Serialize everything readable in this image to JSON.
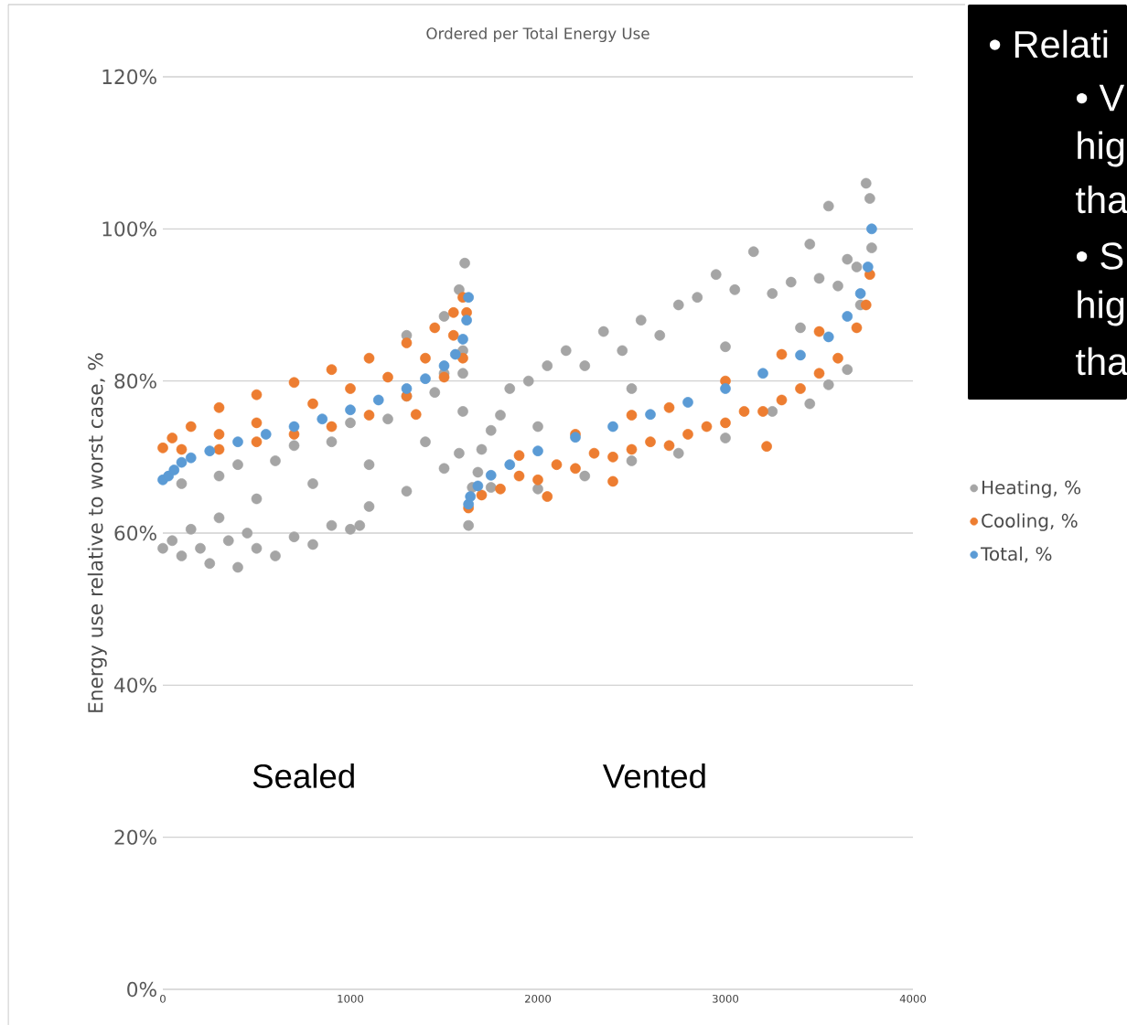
{
  "chart_data": {
    "type": "scatter",
    "title": "Ordered per Total Energy Use",
    "ylabel": "Energy use relative to worst case, %",
    "xlim": [
      0,
      4000
    ],
    "xticks": [
      0,
      1000,
      2000,
      3000,
      4000
    ],
    "ylim": [
      0,
      120
    ],
    "yticks": [
      {
        "value": 0,
        "label": "0%"
      },
      {
        "value": 20,
        "label": "20%"
      },
      {
        "value": 40,
        "label": "40%"
      },
      {
        "value": 60,
        "label": "60%"
      },
      {
        "value": 80,
        "label": "80%"
      },
      {
        "value": 100,
        "label": "100%"
      },
      {
        "value": 120,
        "label": "120%"
      }
    ],
    "grid": "y",
    "legend": "right",
    "marker": "circle",
    "series": [
      {
        "name": "Heating, %",
        "color": "#a5a5a5",
        "x": [
          1300,
          1500,
          1580,
          1610,
          100,
          400,
          700,
          1000,
          1300,
          1500,
          1600,
          300,
          600,
          900,
          1200,
          1450,
          1600,
          500,
          800,
          1100,
          1400,
          1600,
          1100,
          1300,
          1500,
          1580,
          0,
          50,
          100,
          150,
          200,
          250,
          300,
          350,
          400,
          450,
          500,
          600,
          700,
          800,
          900,
          1000,
          1050,
          1630,
          1650,
          1680,
          1700,
          1750,
          1800,
          1850,
          1950,
          2050,
          2150,
          2250,
          2350,
          2450,
          2550,
          2650,
          2750,
          2850,
          2950,
          3050,
          3150,
          3250,
          3350,
          3450,
          3500,
          3550,
          3600,
          3650,
          3700,
          3720,
          3750,
          3770,
          3780,
          1750,
          2000,
          2250,
          2500,
          2750,
          3000,
          3250,
          3450,
          3550,
          3650,
          2000,
          2500,
          3000,
          3400
        ],
        "values": [
          86,
          88.5,
          92,
          95.5,
          66.5,
          69,
          71.5,
          74.5,
          78,
          81,
          84,
          67.5,
          69.5,
          72,
          75,
          78.5,
          81,
          64.5,
          66.5,
          69,
          72,
          76,
          63.5,
          65.5,
          68.5,
          70.5,
          58,
          59,
          57,
          60.5,
          58,
          56,
          62,
          59,
          55.5,
          60,
          58,
          57,
          59.5,
          58.5,
          61,
          60.5,
          61,
          61,
          66,
          68,
          71,
          73.5,
          75.5,
          79,
          80,
          82,
          84,
          82,
          86.5,
          84,
          88,
          86,
          90,
          91,
          94,
          92,
          97,
          91.5,
          93,
          98,
          93.5,
          103,
          92.5,
          96,
          95,
          90,
          106,
          104,
          97.5,
          66,
          65.8,
          67.5,
          69.5,
          70.5,
          72.5,
          76,
          77,
          79.5,
          81.5,
          74,
          79,
          84.5,
          87
        ]
      },
      {
        "name": "Cooling, %",
        "color": "#ed7d31",
        "x": [
          0,
          50,
          150,
          300,
          500,
          700,
          900,
          1100,
          1300,
          1450,
          1550,
          1600,
          100,
          300,
          500,
          800,
          1000,
          1200,
          1400,
          1550,
          1620,
          300,
          500,
          700,
          900,
          1100,
          1300,
          1500,
          1600,
          1350,
          1630,
          1700,
          1800,
          1900,
          2000,
          2100,
          2200,
          2300,
          2400,
          2500,
          2600,
          2700,
          2800,
          2900,
          3000,
          3100,
          3200,
          3300,
          3400,
          3500,
          3600,
          3700,
          3750,
          3770,
          2700,
          3000,
          3300,
          3500,
          1900,
          2200,
          2500,
          2050,
          2400,
          3220
        ],
        "values": [
          71.2,
          72.5,
          74,
          76.5,
          78.2,
          79.8,
          81.5,
          83,
          85,
          87,
          89,
          91,
          71,
          73,
          74.5,
          77,
          79,
          80.5,
          83,
          86,
          89,
          71,
          72,
          73,
          74,
          75.5,
          78,
          80.5,
          83,
          75.6,
          63.3,
          65,
          65.8,
          67.5,
          67,
          69,
          68.5,
          70.5,
          70,
          71,
          72,
          71.5,
          73,
          74,
          74.5,
          76,
          76,
          77.5,
          79,
          81,
          83,
          87,
          90,
          94,
          76.5,
          80,
          83.5,
          86.5,
          70.2,
          73,
          75.5,
          64.8,
          66.8,
          71.4
        ]
      },
      {
        "name": "Total, %",
        "color": "#5b9bd5",
        "x": [
          0,
          30,
          60,
          100,
          150,
          250,
          400,
          550,
          700,
          850,
          1000,
          1150,
          1300,
          1400,
          1500,
          1560,
          1600,
          1620,
          1630,
          1630,
          1640,
          1680,
          1750,
          1850,
          2000,
          2200,
          2400,
          2600,
          2800,
          3000,
          3200,
          3400,
          3550,
          3650,
          3720,
          3760,
          3780
        ],
        "values": [
          67,
          67.5,
          68.3,
          69.3,
          69.9,
          70.8,
          72,
          73,
          74,
          75,
          76.2,
          77.5,
          79,
          80.3,
          82,
          83.5,
          85.5,
          88,
          91,
          63.8,
          64.8,
          66.2,
          67.6,
          69,
          70.8,
          72.6,
          74,
          75.6,
          77.2,
          79,
          81,
          83.4,
          85.8,
          88.5,
          91.5,
          95,
          100
        ]
      }
    ],
    "annotations": [
      "Sealed",
      "Vented",
      "• Relati",
      "• V",
      "hig",
      "tha",
      "• S",
      "hig",
      "tha"
    ]
  }
}
